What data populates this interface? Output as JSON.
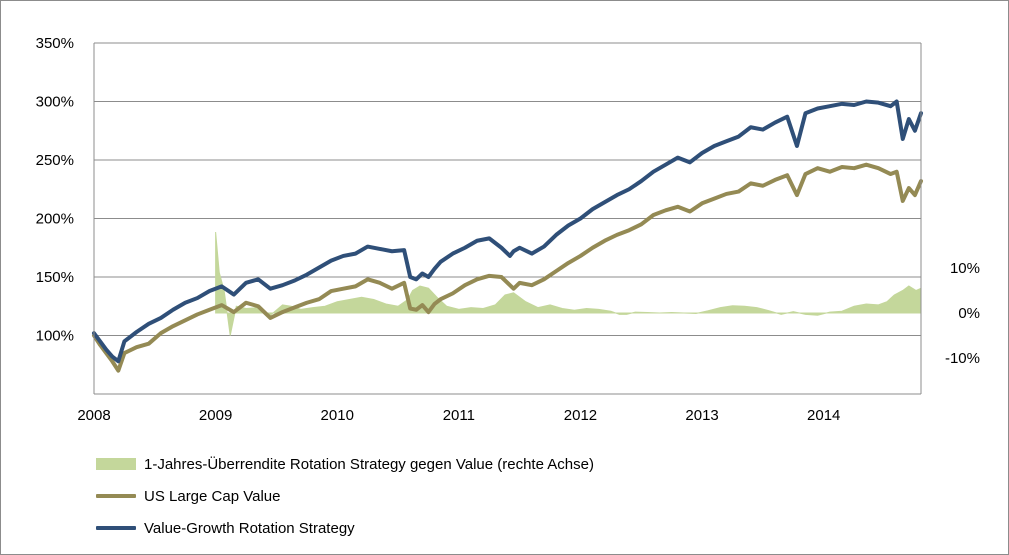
{
  "chart_data": {
    "type": "line",
    "title": "",
    "xlabel": "",
    "ylabel": "",
    "x_ticks": [
      "2008",
      "2009",
      "2010",
      "2011",
      "2012",
      "2013",
      "2014"
    ],
    "x_range": [
      2008.0,
      2014.8
    ],
    "y_left": {
      "ticks": [
        "100%",
        "150%",
        "200%",
        "250%",
        "300%",
        "350%"
      ],
      "range": [
        50,
        350
      ]
    },
    "y_right": {
      "ticks": [
        "10%",
        "0%",
        "-10%"
      ],
      "range": [
        -18,
        60
      ]
    },
    "grid": "horizontal",
    "legend_position": "bottom-left",
    "series": [
      {
        "name": "1-Jahres-Überrendite Rotation Strategy gegen Value (rechte Achse)",
        "kind": "area",
        "axis": "right",
        "color": "#c4d79b",
        "x": [
          2009.0,
          2009.03,
          2009.07,
          2009.12,
          2009.17,
          2009.25,
          2009.35,
          2009.45,
          2009.55,
          2009.62,
          2009.7,
          2009.8,
          2009.9,
          2010.0,
          2010.1,
          2010.2,
          2010.3,
          2010.4,
          2010.5,
          2010.58,
          2010.62,
          2010.68,
          2010.75,
          2010.82,
          2010.9,
          2011.0,
          2011.1,
          2011.2,
          2011.3,
          2011.38,
          2011.45,
          2011.55,
          2011.65,
          2011.75,
          2011.85,
          2011.95,
          2012.05,
          2012.15,
          2012.25,
          2012.32,
          2012.38,
          2012.45,
          2012.55,
          2012.65,
          2012.75,
          2012.85,
          2012.95,
          2013.05,
          2013.15,
          2013.25,
          2013.35,
          2013.45,
          2013.55,
          2013.65,
          2013.75,
          2013.85,
          2013.95,
          2014.05,
          2014.15,
          2014.25,
          2014.35,
          2014.45,
          2014.52,
          2014.58,
          2014.65,
          2014.7,
          2014.76,
          2014.8
        ],
        "values": [
          18,
          9,
          5,
          -5,
          1.5,
          1,
          1.2,
          -0.5,
          1.8,
          1.5,
          0.8,
          1.2,
          1.5,
          2.5,
          3,
          3.5,
          3,
          2,
          1.5,
          3,
          5,
          6,
          5.5,
          3.5,
          1.5,
          0.8,
          1.2,
          1,
          1.8,
          4,
          4.5,
          2.5,
          1.2,
          1.8,
          1,
          0.6,
          1,
          0.8,
          0.4,
          -0.3,
          -0.3,
          0.2,
          0.1,
          0,
          0.1,
          0,
          -0.1,
          0.5,
          1.2,
          1.6,
          1.5,
          1.2,
          0.5,
          -0.3,
          0.3,
          -0.3,
          -0.5,
          0.2,
          0.4,
          1.5,
          2,
          1.8,
          2.5,
          4,
          5,
          6,
          5,
          5.5
        ]
      },
      {
        "name": "US Large Cap Value",
        "kind": "line",
        "axis": "left",
        "color": "#948a54",
        "x": [
          2008.0,
          2008.05,
          2008.1,
          2008.15,
          2008.2,
          2008.25,
          2008.35,
          2008.45,
          2008.55,
          2008.65,
          2008.75,
          2008.85,
          2008.95,
          2009.05,
          2009.15,
          2009.25,
          2009.35,
          2009.45,
          2009.55,
          2009.65,
          2009.75,
          2009.85,
          2009.95,
          2010.05,
          2010.15,
          2010.25,
          2010.35,
          2010.45,
          2010.55,
          2010.6,
          2010.65,
          2010.7,
          2010.75,
          2010.8,
          2010.85,
          2010.95,
          2011.05,
          2011.15,
          2011.25,
          2011.35,
          2011.42,
          2011.45,
          2011.5,
          2011.6,
          2011.7,
          2011.8,
          2011.9,
          2012.0,
          2012.1,
          2012.2,
          2012.3,
          2012.4,
          2012.5,
          2012.6,
          2012.7,
          2012.8,
          2012.9,
          2013.0,
          2013.1,
          2013.2,
          2013.3,
          2013.4,
          2013.5,
          2013.6,
          2013.7,
          2013.78,
          2013.85,
          2013.95,
          2014.05,
          2014.15,
          2014.25,
          2014.35,
          2014.45,
          2014.55,
          2014.6,
          2014.65,
          2014.7,
          2014.75,
          2014.8
        ],
        "values": [
          100,
          92,
          85,
          78,
          70,
          85,
          90,
          93,
          102,
          108,
          113,
          118,
          122,
          126,
          120,
          128,
          125,
          115,
          120,
          124,
          128,
          131,
          138,
          140,
          142,
          148,
          145,
          140,
          145,
          123,
          122,
          126,
          120,
          127,
          131,
          136,
          143,
          148,
          151,
          150,
          143,
          140,
          145,
          143,
          148,
          155,
          162,
          168,
          175,
          181,
          186,
          190,
          195,
          203,
          207,
          210,
          206,
          213,
          217,
          221,
          223,
          230,
          228,
          233,
          237,
          220,
          238,
          243,
          240,
          244,
          243,
          246,
          243,
          238,
          240,
          215,
          226,
          220,
          232
        ]
      },
      {
        "name": "Value-Growth Rotation Strategy",
        "kind": "line",
        "axis": "left",
        "color": "#2f4f78",
        "x": [
          2008.0,
          2008.05,
          2008.1,
          2008.15,
          2008.2,
          2008.25,
          2008.35,
          2008.45,
          2008.55,
          2008.65,
          2008.75,
          2008.85,
          2008.95,
          2009.05,
          2009.15,
          2009.25,
          2009.35,
          2009.45,
          2009.55,
          2009.65,
          2009.75,
          2009.85,
          2009.95,
          2010.05,
          2010.15,
          2010.25,
          2010.35,
          2010.45,
          2010.55,
          2010.6,
          2010.65,
          2010.7,
          2010.75,
          2010.8,
          2010.85,
          2010.95,
          2011.05,
          2011.15,
          2011.25,
          2011.35,
          2011.42,
          2011.45,
          2011.5,
          2011.6,
          2011.7,
          2011.8,
          2011.9,
          2012.0,
          2012.1,
          2012.2,
          2012.3,
          2012.4,
          2012.5,
          2012.6,
          2012.7,
          2012.8,
          2012.9,
          2013.0,
          2013.1,
          2013.2,
          2013.3,
          2013.4,
          2013.5,
          2013.6,
          2013.7,
          2013.78,
          2013.85,
          2013.95,
          2014.05,
          2014.15,
          2014.25,
          2014.35,
          2014.45,
          2014.55,
          2014.6,
          2014.65,
          2014.7,
          2014.75,
          2014.8
        ],
        "values": [
          102,
          95,
          88,
          82,
          78,
          95,
          103,
          110,
          115,
          122,
          128,
          132,
          138,
          142,
          135,
          145,
          148,
          140,
          143,
          147,
          152,
          158,
          164,
          168,
          170,
          176,
          174,
          172,
          173,
          150,
          148,
          153,
          150,
          157,
          163,
          170,
          175,
          181,
          183,
          175,
          168,
          172,
          175,
          170,
          176,
          186,
          194,
          200,
          208,
          214,
          220,
          225,
          232,
          240,
          246,
          252,
          248,
          256,
          262,
          266,
          270,
          278,
          276,
          282,
          287,
          262,
          290,
          294,
          296,
          298,
          297,
          300,
          299,
          296,
          300,
          268,
          285,
          275,
          290
        ]
      }
    ]
  },
  "legend": {
    "items": [
      {
        "label": "1-Jahres-Überrendite Rotation Strategy gegen Value (rechte Achse)",
        "color": "#c4d79b"
      },
      {
        "label": "US Large Cap Value",
        "color": "#948a54"
      },
      {
        "label": "Value-Growth Rotation Strategy",
        "color": "#2f4f78"
      }
    ]
  }
}
